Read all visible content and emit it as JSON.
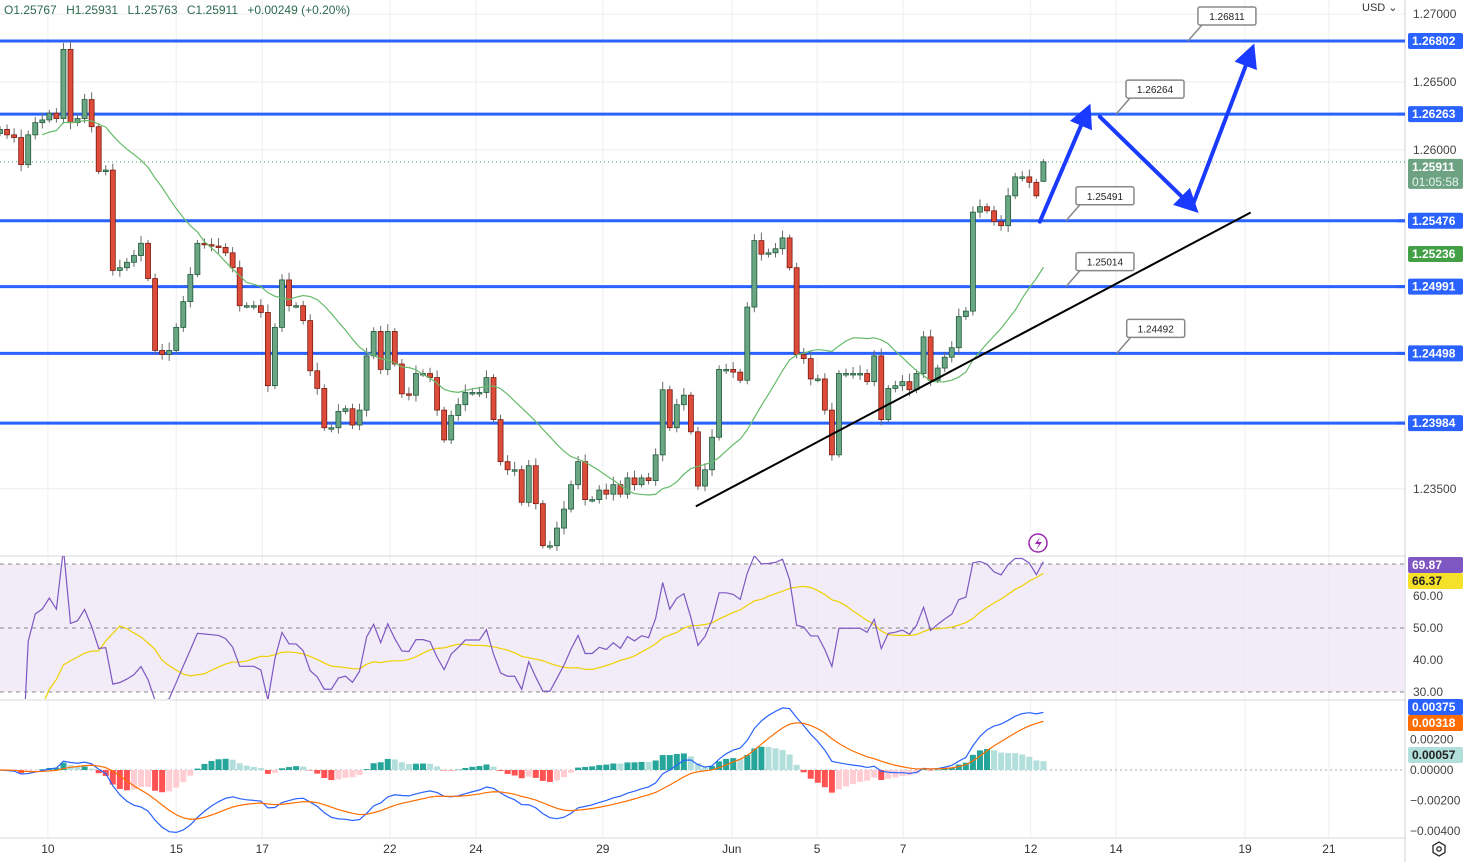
{
  "header": {
    "open": "O1.25767",
    "high": "H1.25931",
    "low": "L1.25763",
    "close": "C1.25911",
    "change": "+0.00249 (+0.20%)",
    "currency": "USD"
  },
  "colors": {
    "up": "#6aa584",
    "up_border": "#1f5a3a",
    "down": "#dd4b3a",
    "down_border": "#7a1d12",
    "level_line": "#2962ff",
    "ma": "#66bb6a",
    "rsi": "#7e57c2",
    "rsi_ma": "#f0d000",
    "macd": "#2962ff",
    "signal": "#ff6d00"
  },
  "chart_data": {
    "type": "candlestick",
    "timeframe_note": "4-hour candles",
    "x_tick_labels": [
      {
        "label": "10",
        "index": 6.8
      },
      {
        "label": "15",
        "index": 25
      },
      {
        "label": "17",
        "index": 37.2
      },
      {
        "label": "22",
        "index": 55.3
      },
      {
        "label": "24",
        "index": 67.5
      },
      {
        "label": "29",
        "index": 85.5
      },
      {
        "label": "Jun",
        "index": 103.8
      },
      {
        "label": "5",
        "index": 115.9
      },
      {
        "label": "7",
        "index": 128.1
      },
      {
        "label": "12",
        "index": 146.2
      },
      {
        "label": "14",
        "index": 158.3
      },
      {
        "label": "19",
        "index": 176.6
      },
      {
        "label": "21",
        "index": 188.5
      }
    ],
    "price_axis_labels": [
      "1.27000",
      "1.26500",
      "1.26000",
      "1.23500"
    ],
    "price_axis_values": [
      1.27,
      1.265,
      1.26,
      1.235
    ],
    "closes": [
      1.2615,
      1.2611,
      1.2609,
      1.2589,
      1.2611,
      1.262,
      1.2622,
      1.2627,
      1.2623,
      1.2674,
      1.262,
      1.2623,
      1.2637,
      1.2617,
      1.2584,
      1.2585,
      1.2511,
      1.2513,
      1.2517,
      1.2522,
      1.2531,
      1.2505,
      1.2452,
      1.2449,
      1.2452,
      1.2469,
      1.2488,
      1.2508,
      1.2531,
      1.253,
      1.2529,
      1.2528,
      1.2524,
      1.2513,
      1.2485,
      1.2485,
      1.2485,
      1.248,
      1.2426,
      1.2469,
      1.2504,
      1.2485,
      1.2485,
      1.2474,
      1.2437,
      1.2424,
      1.2395,
      1.2395,
      1.2407,
      1.2409,
      1.2397,
      1.2408,
      1.2448,
      1.2466,
      1.2438,
      1.2466,
      1.2442,
      1.242,
      1.2419,
      1.2435,
      1.2435,
      1.2432,
      1.2408,
      1.2386,
      1.2404,
      1.2412,
      1.2421,
      1.2421,
      1.2421,
      1.2432,
      1.2401,
      1.237,
      1.2364,
      1.2364,
      1.234,
      1.2367,
      1.2339,
      1.2308,
      1.2308,
      1.2321,
      1.2335,
      1.2353,
      1.237,
      1.2342,
      1.2342,
      1.2349,
      1.2346,
      1.2353,
      1.2346,
      1.2358,
      1.2353,
      1.2358,
      1.2356,
      1.2375,
      1.2423,
      1.2395,
      1.2412,
      1.2419,
      1.2392,
      1.2352,
      1.2364,
      1.2388,
      1.2438,
      1.2438,
      1.2436,
      1.243,
      1.2484,
      1.2533,
      1.2523,
      1.2524,
      1.2527,
      1.2535,
      1.2513,
      1.2449,
      1.2446,
      1.2431,
      1.2431,
      1.2408,
      1.2375,
      1.2435,
      1.2435,
      1.2435,
      1.2435,
      1.2429,
      1.2448,
      1.2401,
      1.2424,
      1.2426,
      1.2429,
      1.2423,
      1.2435,
      1.2462,
      1.243,
      1.2439,
      1.2447,
      1.2454,
      1.2477,
      1.2481,
      1.2554,
      1.2558,
      1.2555,
      1.2547,
      1.2544,
      1.2566,
      1.258,
      1.258,
      1.2576,
      1.2566,
      1.25911
    ],
    "last_candle": {
      "open": 1.25767,
      "high": 1.25931,
      "low": 1.25763,
      "close": 1.25911
    },
    "moving_average_period": 20,
    "horizontal_levels": [
      {
        "value": 1.26802,
        "label": "1.26802"
      },
      {
        "value": 1.26263,
        "label": "1.26263"
      },
      {
        "value": 1.25476,
        "label": "1.25476"
      },
      {
        "value": 1.24991,
        "label": "1.24991"
      },
      {
        "value": 1.24498,
        "label": "1.24498"
      },
      {
        "value": 1.23984,
        "label": "1.23984"
      }
    ],
    "callouts": [
      {
        "label": "1.26811",
        "level": 1.26802,
        "anchor_index": 168.5
      },
      {
        "label": "1.26264",
        "level": 1.26263,
        "anchor_index": 158.3
      },
      {
        "label": "1.25491",
        "level": 1.25476,
        "anchor_index": 151.2
      },
      {
        "label": "1.25014",
        "level": 1.24991,
        "anchor_index": 151.2
      },
      {
        "label": "1.24492",
        "level": 1.24498,
        "anchor_index": 158.4
      }
    ],
    "trendline": {
      "from": {
        "index": 98.7,
        "price": 1.2337
      },
      "to": {
        "index": 177.4,
        "price": 1.25537
      }
    },
    "projection_arrows": [
      {
        "from": {
          "index": 147.5,
          "price": 1.2547
        },
        "to": {
          "index": 154.0,
          "price": 1.26259
        }
      },
      {
        "from": {
          "index": 156.0,
          "price": 1.26244
        },
        "to": {
          "index": 168.8,
          "price": 1.25595
        }
      },
      {
        "from": {
          "index": 169.2,
          "price": 1.25595
        },
        "to": {
          "index": 177.3,
          "price": 1.26701
        }
      }
    ],
    "current_price_label": "1.25911",
    "countdown_label": "01:05:58",
    "ma_label": "1.25236",
    "rsi": {
      "period": 14,
      "ma_period": 14,
      "value_label": "69.87",
      "ma_label": "66.37",
      "axis_labels": [
        "60.00",
        "50.00",
        "40.00",
        "30.00"
      ],
      "axis_values": [
        60,
        50,
        40,
        30
      ],
      "band": [
        30,
        70
      ]
    },
    "macd": {
      "fast": 12,
      "slow": 26,
      "signal": 9,
      "macd_label": "0.00375",
      "signal_label": "0.00318",
      "hist_label": "0.00057",
      "axis_labels": [
        "0.00200",
        "0.00000",
        "−0.00200",
        "−0.00400"
      ],
      "axis_values": [
        0.002,
        0.0,
        -0.002,
        -0.004
      ]
    }
  }
}
